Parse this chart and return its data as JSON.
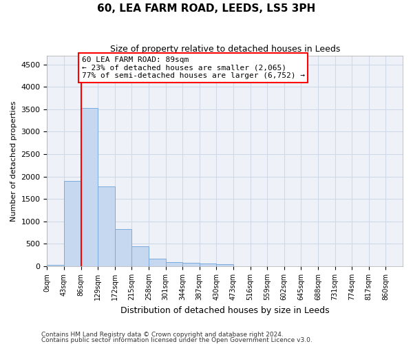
{
  "title": "60, LEA FARM ROAD, LEEDS, LS5 3PH",
  "subtitle": "Size of property relative to detached houses in Leeds",
  "xlabel": "Distribution of detached houses by size in Leeds",
  "ylabel": "Number of detached properties",
  "bar_color": "#c5d8f0",
  "bar_edge_color": "#7aaadc",
  "categories": [
    "0sqm",
    "43sqm",
    "86sqm",
    "129sqm",
    "172sqm",
    "215sqm",
    "258sqm",
    "301sqm",
    "344sqm",
    "387sqm",
    "430sqm",
    "473sqm",
    "516sqm",
    "559sqm",
    "602sqm",
    "645sqm",
    "688sqm",
    "731sqm",
    "774sqm",
    "817sqm",
    "860sqm"
  ],
  "values": [
    30,
    1910,
    3530,
    1780,
    830,
    450,
    165,
    100,
    75,
    60,
    50,
    0,
    0,
    0,
    0,
    0,
    0,
    0,
    0,
    0,
    0
  ],
  "ylim": [
    0,
    4700
  ],
  "yticks": [
    0,
    500,
    1000,
    1500,
    2000,
    2500,
    3000,
    3500,
    4000,
    4500
  ],
  "property_line_x": 2,
  "annotation_title": "60 LEA FARM ROAD: 89sqm",
  "annotation_line1": "← 23% of detached houses are smaller (2,065)",
  "annotation_line2": "77% of semi-detached houses are larger (6,752) →",
  "grid_color": "#d0d8e8",
  "background_color": "#eef2f8",
  "footer1": "Contains HM Land Registry data © Crown copyright and database right 2024.",
  "footer2": "Contains public sector information licensed under the Open Government Licence v3.0."
}
